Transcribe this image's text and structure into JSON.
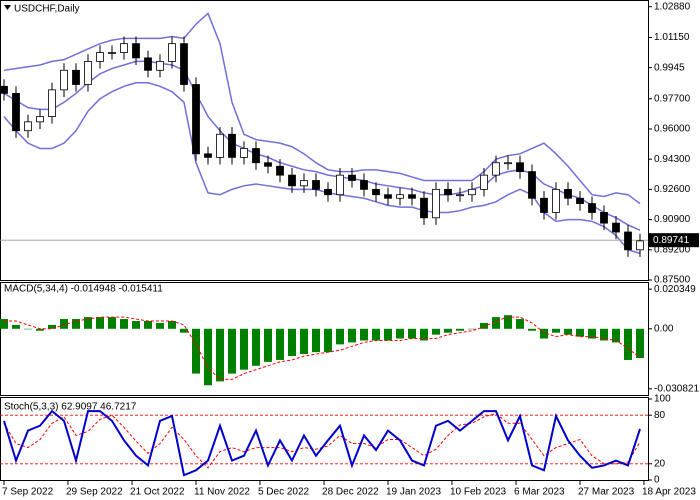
{
  "chart_data": [
    {
      "type": "candlestick",
      "title": "USDCHF,Daily",
      "open": [
        0.984,
        0.98,
        0.959,
        0.964,
        0.967,
        0.982,
        0.993,
        0.985,
        0.998,
        1.003,
        1.003,
        1.008,
        1.0,
        0.993,
        0.998,
        1.008,
        0.985,
        0.946,
        0.944,
        0.957,
        0.944,
        0.949,
        0.941,
        0.939,
        0.934,
        0.928,
        0.931,
        0.926,
        0.923,
        0.934,
        0.931,
        0.926,
        0.923,
        0.921,
        0.923,
        0.921,
        0.91,
        0.926,
        0.923,
        0.923,
        0.926,
        0.934,
        0.941,
        0.941,
        0.936,
        0.921,
        0.913,
        0.926,
        0.921,
        0.918,
        0.913,
        0.907,
        0.902,
        0.892
      ],
      "high": [
        0.988,
        0.984,
        0.968,
        0.971,
        0.986,
        0.997,
        0.997,
        1.002,
        1.007,
        1.007,
        1.012,
        1.012,
        1.004,
        1.002,
        1.012,
        1.012,
        0.989,
        0.95,
        0.961,
        0.961,
        0.953,
        0.953,
        0.945,
        0.943,
        0.938,
        0.935,
        0.935,
        0.93,
        0.938,
        0.938,
        0.935,
        0.93,
        0.927,
        0.927,
        0.927,
        0.925,
        0.93,
        0.93,
        0.927,
        0.93,
        0.938,
        0.945,
        0.945,
        0.945,
        0.94,
        0.925,
        0.93,
        0.93,
        0.925,
        0.922,
        0.917,
        0.911,
        0.906,
        0.901
      ],
      "low": [
        0.976,
        0.955,
        0.955,
        0.96,
        0.963,
        0.978,
        0.981,
        0.981,
        0.994,
        0.999,
        0.999,
        0.996,
        0.989,
        0.989,
        0.994,
        0.981,
        0.942,
        0.94,
        0.94,
        0.94,
        0.94,
        0.937,
        0.935,
        0.93,
        0.924,
        0.924,
        0.922,
        0.919,
        0.919,
        0.927,
        0.922,
        0.919,
        0.917,
        0.917,
        0.917,
        0.906,
        0.906,
        0.919,
        0.919,
        0.919,
        0.922,
        0.93,
        0.937,
        0.932,
        0.917,
        0.909,
        0.909,
        0.917,
        0.914,
        0.909,
        0.903,
        0.898,
        0.888,
        0.888
      ],
      "close": [
        0.98,
        0.959,
        0.964,
        0.967,
        0.982,
        0.993,
        0.985,
        0.998,
        1.003,
        1.003,
        1.008,
        1.0,
        0.993,
        0.998,
        1.008,
        0.985,
        0.946,
        0.944,
        0.957,
        0.944,
        0.949,
        0.941,
        0.939,
        0.934,
        0.928,
        0.931,
        0.926,
        0.923,
        0.934,
        0.931,
        0.926,
        0.923,
        0.921,
        0.923,
        0.921,
        0.91,
        0.926,
        0.923,
        0.923,
        0.926,
        0.934,
        0.941,
        0.941,
        0.936,
        0.921,
        0.913,
        0.926,
        0.921,
        0.918,
        0.913,
        0.907,
        0.902,
        0.892,
        0.897
      ],
      "up_color": "#ffffff",
      "down_color": "#000000",
      "bands": {
        "color": "#7070dd",
        "upper": [
          0.993,
          0.994,
          0.995,
          0.996,
          0.998,
          0.999,
          1.002,
          1.005,
          1.008,
          1.01,
          1.011,
          1.011,
          1.011,
          1.011,
          1.012,
          1.011,
          1.019,
          1.025,
          1.008,
          0.975,
          0.957,
          0.954,
          0.953,
          0.952,
          0.95,
          0.946,
          0.941,
          0.937,
          0.936,
          0.936,
          0.937,
          0.937,
          0.936,
          0.935,
          0.933,
          0.931,
          0.931,
          0.931,
          0.931,
          0.931,
          0.936,
          0.943,
          0.945,
          0.946,
          0.949,
          0.952,
          0.946,
          0.939,
          0.931,
          0.923,
          0.922,
          0.924,
          0.923,
          0.918
        ],
        "middle": [
          0.98,
          0.976,
          0.972,
          0.971,
          0.971,
          0.975,
          0.98,
          0.986,
          0.991,
          0.994,
          0.996,
          0.998,
          0.998,
          0.997,
          0.996,
          0.993,
          0.98,
          0.967,
          0.959,
          0.952,
          0.949,
          0.946,
          0.944,
          0.941,
          0.939,
          0.937,
          0.936,
          0.934,
          0.933,
          0.932,
          0.931,
          0.929,
          0.928,
          0.927,
          0.926,
          0.924,
          0.923,
          0.923,
          0.924,
          0.926,
          0.928,
          0.934,
          0.936,
          0.937,
          0.935,
          0.929,
          0.926,
          0.923,
          0.921,
          0.917,
          0.913,
          0.91,
          0.906,
          0.903
        ],
        "lower": [
          0.967,
          0.959,
          0.952,
          0.949,
          0.949,
          0.952,
          0.959,
          0.97,
          0.977,
          0.981,
          0.984,
          0.986,
          0.986,
          0.984,
          0.981,
          0.975,
          0.941,
          0.924,
          0.923,
          0.926,
          0.928,
          0.929,
          0.928,
          0.927,
          0.926,
          0.926,
          0.926,
          0.924,
          0.923,
          0.922,
          0.921,
          0.919,
          0.917,
          0.916,
          0.916,
          0.914,
          0.913,
          0.913,
          0.914,
          0.916,
          0.917,
          0.919,
          0.923,
          0.926,
          0.923,
          0.913,
          0.908,
          0.909,
          0.909,
          0.908,
          0.905,
          0.9,
          0.892,
          0.89
        ]
      },
      "current_price": 0.89741,
      "current_color": "#000000",
      "ylim": [
        0.875,
        1.032
      ],
      "yticks": [
        {
          "value": 1.0288,
          "label": "1.02880"
        },
        {
          "value": 1.0115,
          "label": "1.01150"
        },
        0.9945,
        {
          "value": 0.977,
          "label": "0.97700"
        },
        {
          "value": 0.96,
          "label": "0.96000"
        },
        {
          "value": 0.943,
          "label": "0.94300"
        },
        {
          "value": 0.926,
          "label": "0.92600"
        },
        {
          "value": 0.909,
          "label": "0.90900"
        },
        {
          "value": 0.892,
          "label": "0.89200"
        },
        {
          "value": 0.875,
          "label": "0.87500"
        }
      ]
    },
    {
      "type": "macd",
      "title": "MACD(5,34,4) -0.014948 -0.015411",
      "histogram": {
        "color": "#008000",
        "values": [
          0.005,
          0.002,
          0.0,
          -0.001,
          0.002,
          0.005,
          0.005,
          0.006,
          0.006,
          0.006,
          0.005,
          0.004,
          0.004,
          0.003,
          0.004,
          -0.002,
          -0.023,
          -0.029,
          -0.027,
          -0.023,
          -0.021,
          -0.019,
          -0.017,
          -0.016,
          -0.014,
          -0.013,
          -0.012,
          -0.012,
          -0.008,
          -0.007,
          -0.006,
          -0.006,
          -0.006,
          -0.005,
          -0.005,
          -0.006,
          -0.003,
          -0.002,
          -0.001,
          0.0,
          0.003,
          0.006,
          0.007,
          0.005,
          -0.001,
          -0.005,
          -0.002,
          -0.003,
          -0.004,
          -0.005,
          -0.006,
          -0.007,
          -0.016,
          -0.015
        ]
      },
      "signal": {
        "color": "#ff0000",
        "values": [
          0.004,
          0.004,
          0.002,
          0.0,
          0.0,
          0.002,
          0.004,
          0.005,
          0.006,
          0.006,
          0.006,
          0.005,
          0.004,
          0.004,
          0.004,
          0.002,
          -0.008,
          -0.02,
          -0.026,
          -0.026,
          -0.023,
          -0.021,
          -0.019,
          -0.017,
          -0.016,
          -0.014,
          -0.013,
          -0.012,
          -0.011,
          -0.009,
          -0.007,
          -0.006,
          -0.006,
          -0.006,
          -0.005,
          -0.005,
          -0.005,
          -0.003,
          -0.002,
          -0.001,
          0.001,
          0.004,
          0.006,
          0.006,
          0.003,
          -0.002,
          -0.004,
          -0.003,
          -0.004,
          -0.004,
          -0.005,
          -0.006,
          -0.01,
          -0.015
        ]
      },
      "ylim": [
        -0.034,
        0.023
      ],
      "yticks": [
        0.020349,
        {
          "value": 0,
          "label": "0.00"
        },
        -0.030821
      ]
    },
    {
      "type": "stochastic",
      "title": "Stoch(5,3,3) 62.9097 46.7217",
      "main": {
        "color": "#0000cd",
        "values": [
          73,
          24,
          61,
          67,
          85,
          73,
          24,
          85,
          85,
          73,
          49,
          30,
          18,
          73,
          79,
          6,
          12,
          24,
          67,
          24,
          30,
          61,
          18,
          49,
          24,
          55,
          30,
          49,
          67,
          18,
          55,
          37,
          61,
          49,
          24,
          18,
          67,
          73,
          61,
          73,
          85,
          85,
          49,
          79,
          18,
          12,
          79,
          49,
          30,
          15,
          18,
          24,
          18,
          63
        ]
      },
      "signal": {
        "color": "#ff0000",
        "values": [
          70,
          45,
          40,
          50,
          70,
          78,
          55,
          60,
          75,
          80,
          65,
          48,
          33,
          45,
          65,
          50,
          30,
          15,
          35,
          40,
          35,
          40,
          40,
          40,
          35,
          40,
          38,
          42,
          55,
          45,
          45,
          40,
          50,
          50,
          40,
          30,
          38,
          55,
          68,
          70,
          78,
          82,
          70,
          70,
          50,
          30,
          40,
          45,
          50,
          30,
          20,
          20,
          22,
          47
        ]
      },
      "level_lines": [
        80,
        20
      ],
      "level_color": "#ff0000",
      "ylim": [
        0,
        100
      ],
      "yticks": [
        100,
        80,
        20,
        0
      ],
      "xticks": [
        {
          "value": 0,
          "label": "7 Sep 2022"
        },
        {
          "value": 5.33,
          "label": "29 Sep 2022"
        },
        {
          "value": 10.67,
          "label": "21 Oct 2022"
        },
        {
          "value": 16,
          "label": "11 Nov 2022"
        },
        {
          "value": 21.33,
          "label": "5 Dec 2022"
        },
        {
          "value": 26.67,
          "label": "28 Dec 2022"
        },
        {
          "value": 32,
          "label": "19 Jan 2023"
        },
        {
          "value": 37.33,
          "label": "10 Feb 2023"
        },
        {
          "value": 42.67,
          "label": "6 Mar 2023"
        },
        {
          "value": 48,
          "label": "27 Mar 2023"
        },
        {
          "value": 53.33,
          "label": "18 Apr 2023"
        }
      ]
    }
  ]
}
